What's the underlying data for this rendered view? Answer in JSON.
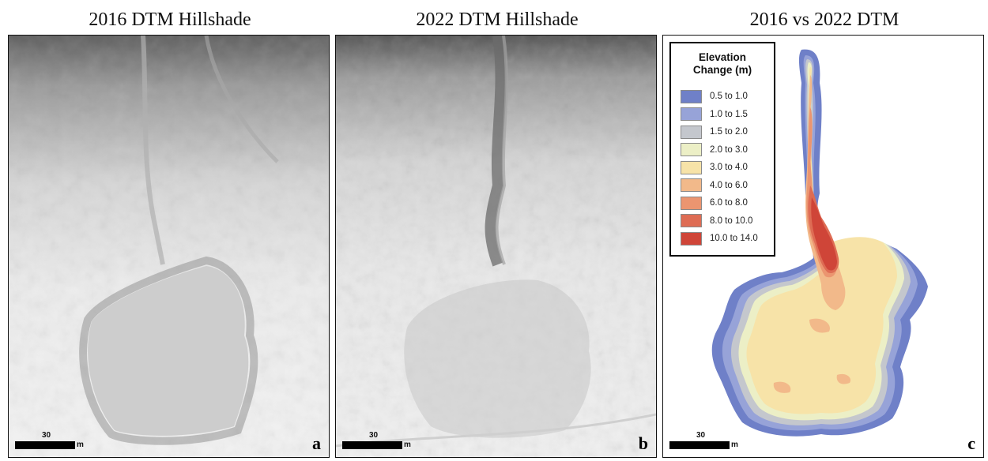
{
  "panels": [
    {
      "title": "2016 DTM Hillshade",
      "letter": "a"
    },
    {
      "title": "2022 DTM Hillshade",
      "letter": "b"
    },
    {
      "title": "2016 vs 2022 DTM",
      "letter": "c"
    }
  ],
  "scale_bar": {
    "value": "30",
    "unit": "m"
  },
  "legend": {
    "title_line1": "Elevation",
    "title_line2": "Change (m)",
    "classes": [
      {
        "label": "0.5 to 1.0",
        "color": "#6f80c8"
      },
      {
        "label": "1.0 to 1.5",
        "color": "#97a3d8"
      },
      {
        "label": "1.5 to 2.0",
        "color": "#c4c7cd"
      },
      {
        "label": "2.0 to 3.0",
        "color": "#ecefc6"
      },
      {
        "label": "3.0 to 4.0",
        "color": "#f7e3a8"
      },
      {
        "label": "4.0 to 6.0",
        "color": "#f2b98a"
      },
      {
        "label": "6.0 to 8.0",
        "color": "#eb9570"
      },
      {
        "label": "8.0 to 10.0",
        "color": "#de6c54"
      },
      {
        "label": "10.0 to 14.0",
        "color": "#cf4538"
      }
    ]
  }
}
